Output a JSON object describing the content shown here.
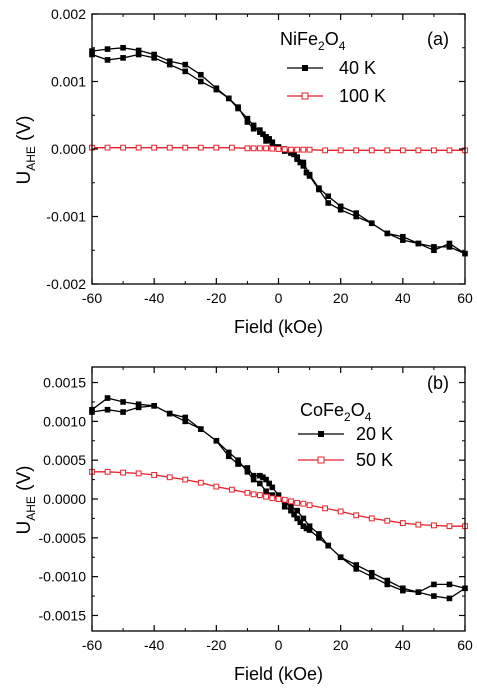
{
  "chart_data": [
    {
      "panel_label": "(a)",
      "type": "line",
      "xlabel": "Field (kOe)",
      "ylabel_main": "U",
      "ylabel_sub": "AHE",
      "ylabel_unit": " (V)",
      "xlim": [
        -60,
        60
      ],
      "ylim": [
        -0.002,
        0.002
      ],
      "x_ticks": [
        -60,
        -40,
        -20,
        0,
        20,
        40,
        60
      ],
      "y_ticks": [
        -0.002,
        -0.001,
        0.0,
        0.001,
        0.002
      ],
      "y_tick_labels": [
        "-0.002",
        "-0.001",
        "0.000",
        "0.001",
        "0.002"
      ],
      "x_tick_labels": [
        "-60",
        "-40",
        "-20",
        "0",
        "20",
        "40",
        "60"
      ],
      "material": {
        "base": "NiFe",
        "sub1": "2",
        "mid": "O",
        "sub2": "4"
      },
      "legend_position": "top-right",
      "series": [
        {
          "name": "40 K",
          "color": "#000000",
          "marker": "filled-square",
          "x": [
            -60,
            -55,
            -50,
            -45,
            -40,
            -35,
            -30,
            -25,
            -20,
            -16,
            -13,
            -10,
            -8,
            -6,
            -5,
            -4,
            -3,
            -2,
            0,
            2,
            4,
            5,
            6,
            7,
            8,
            9,
            10,
            13,
            16,
            20,
            25,
            30,
            35,
            40,
            45,
            50,
            55,
            60,
            55,
            50,
            45,
            40,
            35,
            30,
            25,
            20,
            16,
            13,
            10,
            8,
            6,
            4,
            2,
            0,
            -2,
            -4,
            -6,
            -8,
            -10,
            -13,
            -16,
            -20,
            -25,
            -30,
            -35,
            -40,
            -45,
            -50,
            -55,
            -60
          ],
          "y": [
            0.00145,
            0.00148,
            0.0015,
            0.00146,
            0.0014,
            0.0013,
            0.00125,
            0.0011,
            0.0009,
            0.00075,
            0.00062,
            0.0004,
            0.0003,
            0.00028,
            0.00022,
            0.00018,
            0.00015,
            0.0001,
            2e-05,
            -3e-05,
            -6e-05,
            -8e-05,
            -0.00015,
            -0.0002,
            -0.00025,
            -0.00035,
            -0.0004,
            -0.0006,
            -0.0008,
            -0.0009,
            -0.001,
            -0.0011,
            -0.00125,
            -0.00135,
            -0.0014,
            -0.00145,
            -0.00145,
            -0.00155,
            -0.0014,
            -0.0015,
            -0.0014,
            -0.0013,
            -0.00125,
            -0.0011,
            -0.00095,
            -0.00085,
            -0.0007,
            -0.00058,
            -0.00038,
            -0.0002,
            -0.00012,
            -4e-05,
            0.0,
            3e-05,
            8e-05,
            0.00012,
            0.00025,
            0.00035,
            0.00045,
            0.0006,
            0.00075,
            0.00088,
            0.001,
            0.00115,
            0.00125,
            0.00135,
            0.0014,
            0.00135,
            0.00132,
            0.0014
          ]
        },
        {
          "name": "100 K",
          "color": "#e8202a",
          "marker": "open-square",
          "x": [
            -60,
            -55,
            -50,
            -45,
            -40,
            -35,
            -30,
            -25,
            -20,
            -15,
            -10,
            -8,
            -6,
            -4,
            -2,
            0,
            2,
            4,
            6,
            8,
            10,
            15,
            20,
            25,
            30,
            35,
            40,
            45,
            50,
            55,
            60
          ],
          "y": [
            2e-05,
            2e-05,
            2e-05,
            2e-05,
            2e-05,
            2e-05,
            2e-05,
            2e-05,
            2e-05,
            2e-05,
            1e-05,
            1e-05,
            1e-05,
            1e-05,
            5e-06,
            0.0,
            -5e-06,
            -1e-05,
            -1e-05,
            -1e-05,
            -1e-05,
            -2e-05,
            -2e-05,
            -2e-05,
            -2e-05,
            -2e-05,
            -2e-05,
            -2e-05,
            -2e-05,
            -2e-05,
            -2e-05
          ]
        }
      ]
    },
    {
      "panel_label": "(b)",
      "type": "line",
      "xlabel": "Field (kOe)",
      "ylabel_main": "U",
      "ylabel_sub": "AHE",
      "ylabel_unit": " (V)",
      "xlim": [
        -60,
        60
      ],
      "ylim": [
        -0.0017,
        0.0017
      ],
      "x_ticks": [
        -60,
        -40,
        -20,
        0,
        20,
        40,
        60
      ],
      "y_ticks": [
        -0.0015,
        -0.001,
        -0.0005,
        0.0,
        0.0005,
        0.001,
        0.0015
      ],
      "y_tick_labels": [
        "-0.0015",
        "-0.0010",
        "-0.0005",
        "0.0000",
        "0.0005",
        "0.0010",
        "0.0015"
      ],
      "x_tick_labels": [
        "-60",
        "-40",
        "-20",
        "0",
        "20",
        "40",
        "60"
      ],
      "material": {
        "base": "CoFe",
        "sub1": "2",
        "mid": "O",
        "sub2": "4"
      },
      "legend_position": "top-right",
      "series": [
        {
          "name": "20 K",
          "color": "#000000",
          "marker": "filled-square",
          "x": [
            -60,
            -55,
            -50,
            -45,
            -40,
            -35,
            -30,
            -25,
            -20,
            -16,
            -13,
            -10,
            -8,
            -6,
            -5,
            -4,
            -3,
            -2,
            0,
            2,
            4,
            5,
            6,
            7,
            8,
            9,
            10,
            13,
            16,
            20,
            25,
            30,
            35,
            40,
            45,
            50,
            55,
            60,
            55,
            50,
            45,
            40,
            35,
            30,
            25,
            20,
            16,
            13,
            10,
            8,
            6,
            4,
            2,
            0,
            -2,
            -4,
            -6,
            -8,
            -10,
            -13,
            -16,
            -20,
            -25,
            -30,
            -35,
            -40,
            -45,
            -50,
            -55,
            -60
          ],
          "y": [
            0.00115,
            0.0013,
            0.00125,
            0.00122,
            0.0012,
            0.0011,
            0.00105,
            0.0009,
            0.00075,
            0.00055,
            0.00045,
            0.0004,
            0.0003,
            0.0003,
            0.00028,
            0.00025,
            0.0002,
            0.00015,
            5e-05,
            -0.0001,
            -0.00015,
            -0.0002,
            -0.00025,
            -0.0003,
            -0.00035,
            -0.00038,
            -0.0004,
            -0.0005,
            -0.0006,
            -0.00075,
            -0.00085,
            -0.00095,
            -0.00105,
            -0.00115,
            -0.0012,
            -0.00125,
            -0.00128,
            -0.00115,
            -0.0011,
            -0.0011,
            -0.0012,
            -0.00118,
            -0.0011,
            -0.001,
            -0.0009,
            -0.00075,
            -0.0006,
            -0.00045,
            -0.00035,
            -0.00025,
            -0.00015,
            -0.0001,
            -3e-05,
            0.0,
            5e-05,
            0.0001,
            0.0002,
            0.00025,
            0.00035,
            0.0005,
            0.0006,
            0.00075,
            0.0009,
            0.001,
            0.0011,
            0.0012,
            0.00118,
            0.00112,
            0.00115,
            0.00112
          ]
        },
        {
          "name": "50 K",
          "color": "#e8202a",
          "marker": "open-square",
          "x": [
            -60,
            -55,
            -50,
            -45,
            -40,
            -35,
            -30,
            -25,
            -20,
            -15,
            -10,
            -8,
            -6,
            -4,
            -2,
            0,
            2,
            4,
            6,
            8,
            10,
            15,
            20,
            25,
            30,
            35,
            40,
            45,
            50,
            55,
            60
          ],
          "y": [
            0.00035,
            0.00035,
            0.00034,
            0.00033,
            0.00031,
            0.00028,
            0.00025,
            0.00021,
            0.00016,
            0.00012,
            8e-05,
            6e-05,
            5e-05,
            3e-05,
            1e-05,
            0.0,
            -1e-05,
            -3e-05,
            -5e-05,
            -6e-05,
            -8e-05,
            -0.00012,
            -0.00016,
            -0.00021,
            -0.00025,
            -0.00028,
            -0.00031,
            -0.00033,
            -0.00034,
            -0.00035,
            -0.00035
          ]
        }
      ]
    }
  ]
}
